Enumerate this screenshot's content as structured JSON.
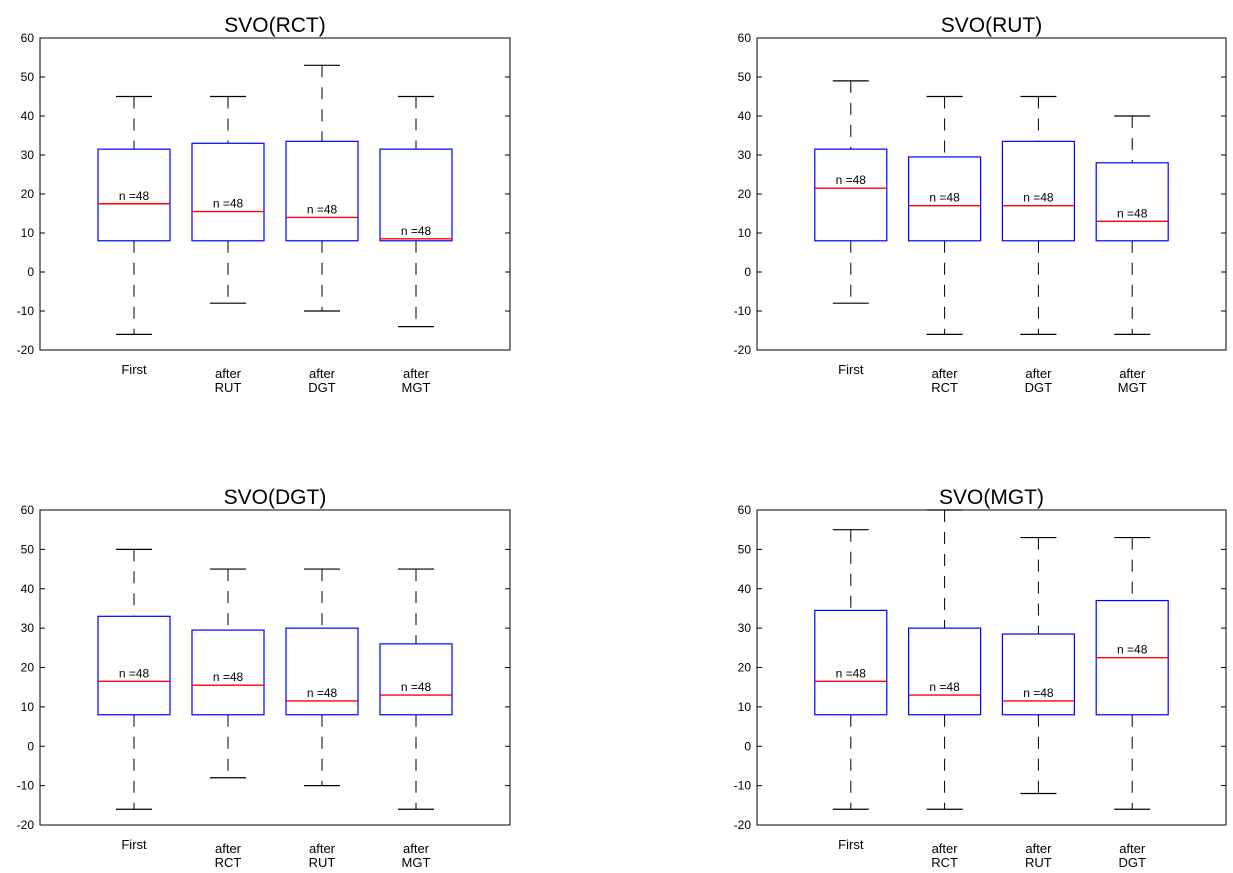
{
  "chart_data": [
    {
      "type": "box",
      "title": "SVO(RCT)",
      "ylim": [
        -20,
        60
      ],
      "yticks": [
        -20,
        -10,
        0,
        10,
        20,
        30,
        40,
        50,
        60
      ],
      "categories": [
        [
          "First"
        ],
        [
          "after",
          "RUT"
        ],
        [
          "after",
          "DGT"
        ],
        [
          "after",
          "MGT"
        ]
      ],
      "boxes": [
        {
          "whisker_low": -16,
          "q1": 8,
          "median": 17.5,
          "q3": 31.5,
          "whisker_high": 45,
          "n_label": "n =48"
        },
        {
          "whisker_low": -8,
          "q1": 8,
          "median": 15.5,
          "q3": 33,
          "whisker_high": 45,
          "n_label": "n =48"
        },
        {
          "whisker_low": -10,
          "q1": 8,
          "median": 14,
          "q3": 33.5,
          "whisker_high": 53,
          "n_label": "n =48"
        },
        {
          "whisker_low": -14,
          "q1": 8,
          "median": 8.5,
          "q3": 31.5,
          "whisker_high": 45,
          "n_label": "n =48"
        }
      ]
    },
    {
      "type": "box",
      "title": "SVO(RUT)",
      "ylim": [
        -20,
        60
      ],
      "yticks": [
        -20,
        -10,
        0,
        10,
        20,
        30,
        40,
        50,
        60
      ],
      "categories": [
        [
          "First"
        ],
        [
          "after",
          "RCT"
        ],
        [
          "after",
          "DGT"
        ],
        [
          "after",
          "MGT"
        ]
      ],
      "boxes": [
        {
          "whisker_low": -8,
          "q1": 8,
          "median": 21.5,
          "q3": 31.5,
          "whisker_high": 49,
          "n_label": "n =48"
        },
        {
          "whisker_low": -16,
          "q1": 8,
          "median": 17,
          "q3": 29.5,
          "whisker_high": 45,
          "n_label": "n =48"
        },
        {
          "whisker_low": -16,
          "q1": 8,
          "median": 17,
          "q3": 33.5,
          "whisker_high": 45,
          "n_label": "n =48"
        },
        {
          "whisker_low": -16,
          "q1": 8,
          "median": 13,
          "q3": 28,
          "whisker_high": 40,
          "n_label": "n =48"
        }
      ]
    },
    {
      "type": "box",
      "title": "SVO(DGT)",
      "ylim": [
        -20,
        60
      ],
      "yticks": [
        -20,
        -10,
        0,
        10,
        20,
        30,
        40,
        50,
        60
      ],
      "categories": [
        [
          "First"
        ],
        [
          "after",
          "RCT"
        ],
        [
          "after",
          "RUT"
        ],
        [
          "after",
          "MGT"
        ]
      ],
      "boxes": [
        {
          "whisker_low": -16,
          "q1": 8,
          "median": 16.5,
          "q3": 33,
          "whisker_high": 50,
          "n_label": "n =48"
        },
        {
          "whisker_low": -8,
          "q1": 8,
          "median": 15.5,
          "q3": 29.5,
          "whisker_high": 45,
          "n_label": "n =48"
        },
        {
          "whisker_low": -10,
          "q1": 8,
          "median": 11.5,
          "q3": 30,
          "whisker_high": 45,
          "n_label": "n =48"
        },
        {
          "whisker_low": -16,
          "q1": 8,
          "median": 13,
          "q3": 26,
          "whisker_high": 45,
          "n_label": "n =48"
        }
      ]
    },
    {
      "type": "box",
      "title": "SVO(MGT)",
      "ylim": [
        -20,
        60
      ],
      "yticks": [
        -20,
        -10,
        0,
        10,
        20,
        30,
        40,
        50,
        60
      ],
      "categories": [
        [
          "First"
        ],
        [
          "after",
          "RCT"
        ],
        [
          "after",
          "RUT"
        ],
        [
          "after",
          "DGT"
        ]
      ],
      "boxes": [
        {
          "whisker_low": -16,
          "q1": 8,
          "median": 16.5,
          "q3": 34.5,
          "whisker_high": 55,
          "n_label": "n =48"
        },
        {
          "whisker_low": -16,
          "q1": 8,
          "median": 13,
          "q3": 30,
          "whisker_high": 60,
          "n_label": "n =48"
        },
        {
          "whisker_low": -12,
          "q1": 8,
          "median": 11.5,
          "q3": 28.5,
          "whisker_high": 53,
          "n_label": "n =48"
        },
        {
          "whisker_low": -16,
          "q1": 8,
          "median": 22.5,
          "q3": 37,
          "whisker_high": 53,
          "n_label": "n =48"
        }
      ]
    }
  ],
  "colors": {
    "box_edge": "#0000ff",
    "median": "#ff0000",
    "whisker": "#000000",
    "axis": "#000000"
  }
}
